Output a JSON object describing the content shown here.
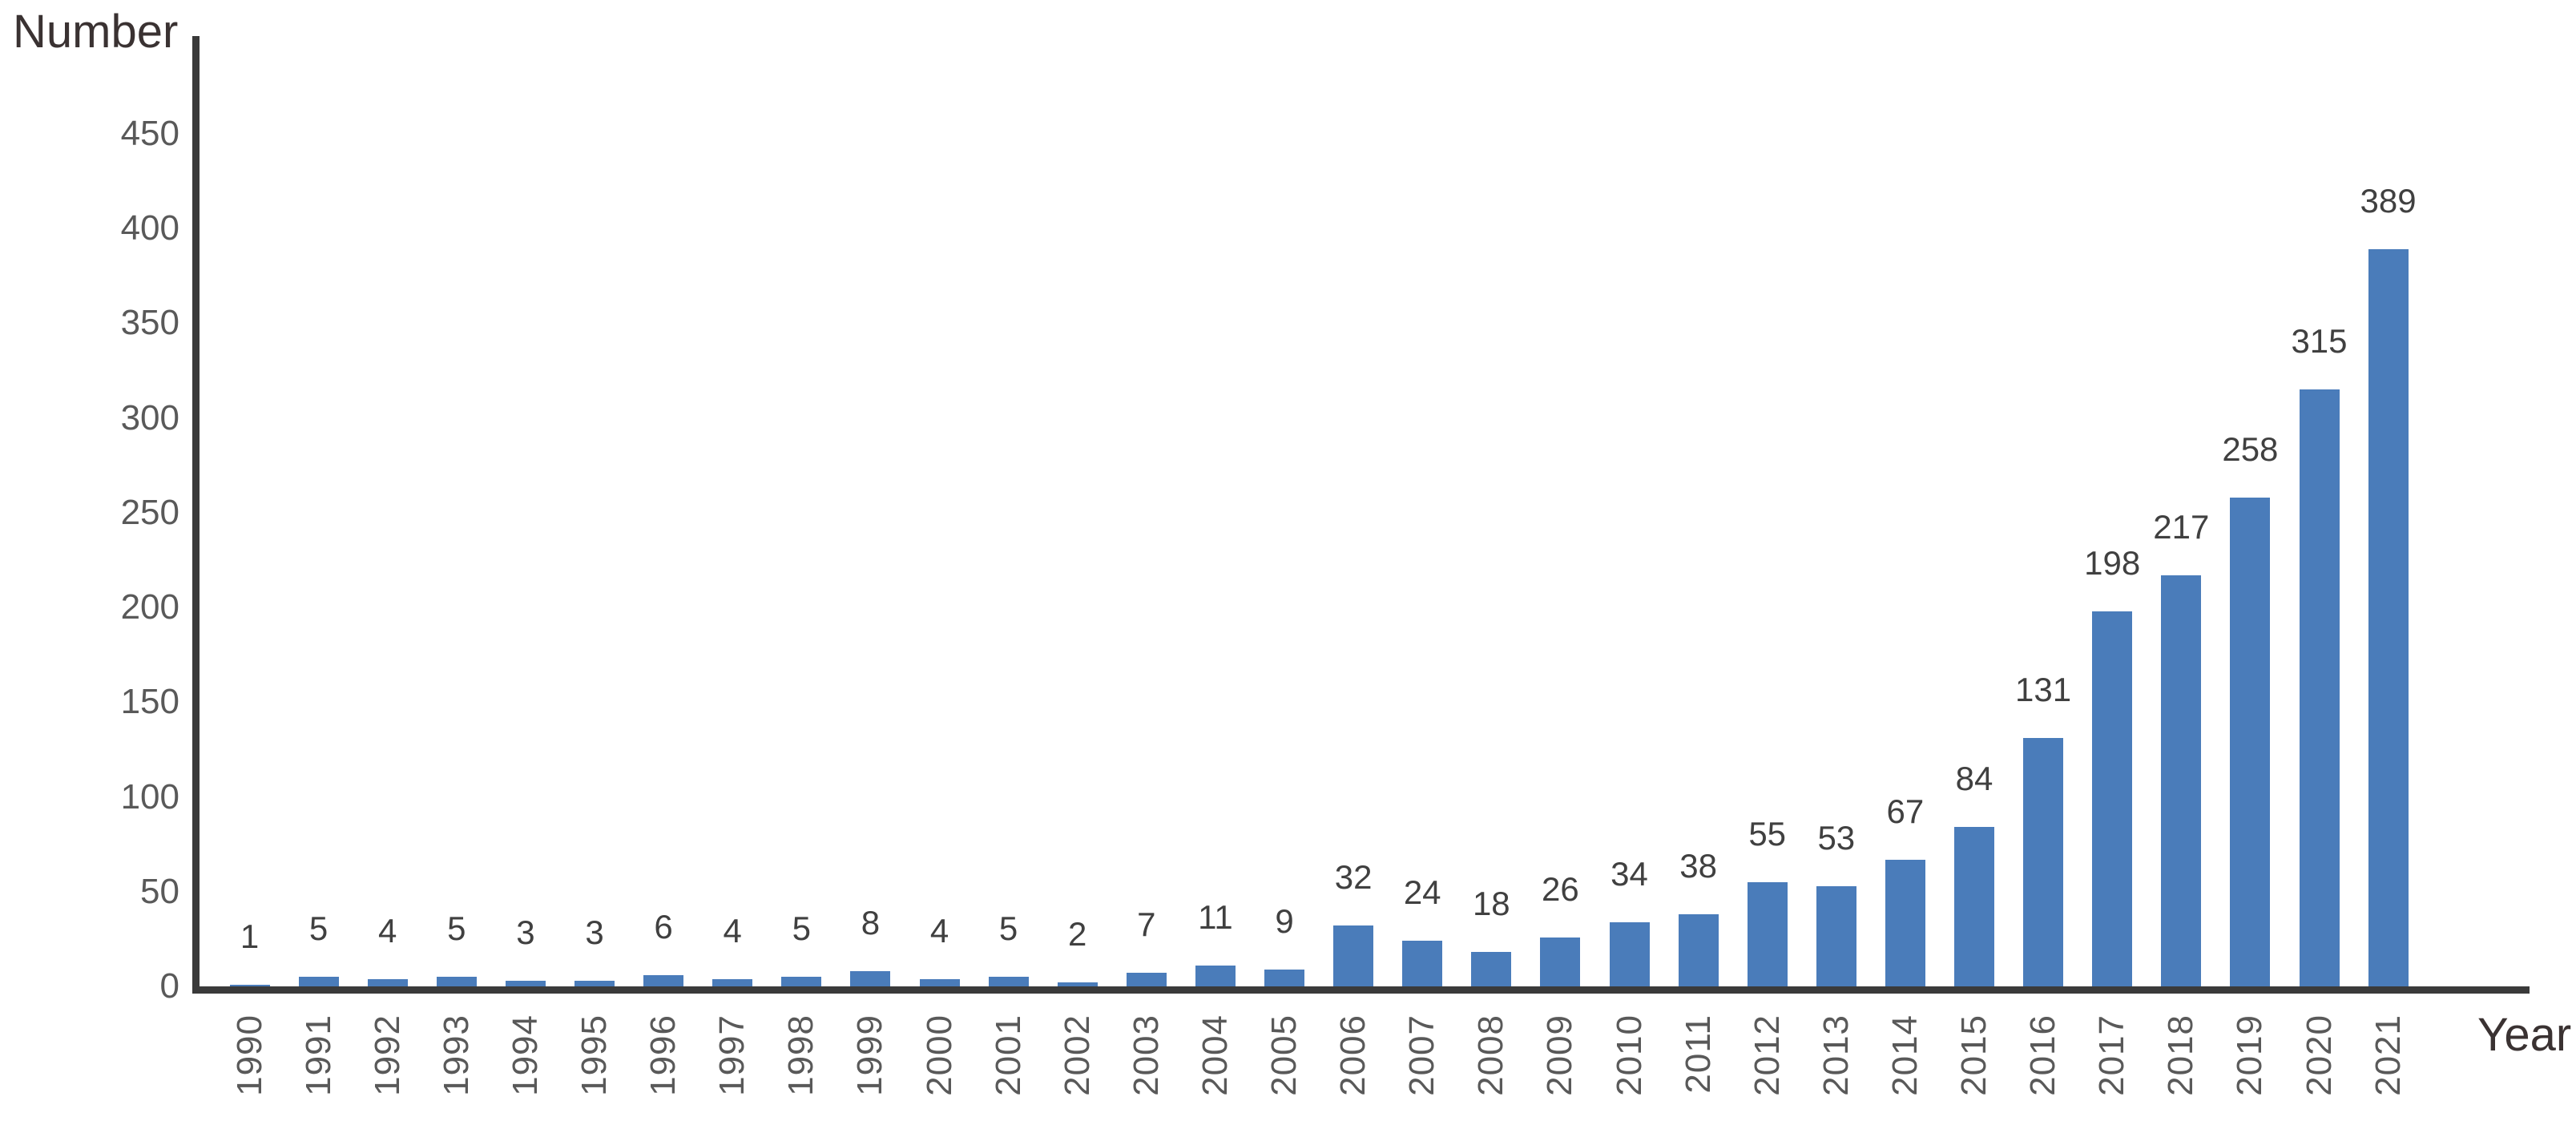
{
  "chart_data": {
    "type": "bar",
    "title": "",
    "ylabel": "Number",
    "xlabel": "Year",
    "categories": [
      "1990",
      "1991",
      "1992",
      "1993",
      "1994",
      "1995",
      "1996",
      "1997",
      "1998",
      "1999",
      "2000",
      "2001",
      "2002",
      "2003",
      "2004",
      "2005",
      "2006",
      "2007",
      "2008",
      "2009",
      "2010",
      "2011",
      "2012",
      "2013",
      "2014",
      "2015",
      "2016",
      "2017",
      "2018",
      "2019",
      "2020",
      "2021"
    ],
    "values": [
      1,
      5,
      4,
      5,
      3,
      3,
      6,
      4,
      5,
      8,
      4,
      5,
      2,
      7,
      11,
      9,
      32,
      24,
      18,
      26,
      34,
      38,
      55,
      53,
      67,
      84,
      131,
      198,
      217,
      258,
      315,
      389
    ],
    "ylim": [
      0,
      450
    ],
    "ytick_step": 50,
    "yticks": [
      0,
      50,
      100,
      150,
      200,
      250,
      300,
      350,
      400,
      450
    ],
    "grid": false,
    "legend": null,
    "data_labels_shown": true,
    "x_tick_rotation_deg": 90,
    "colors": {
      "bar": "#4a7cba",
      "axis": "#3a3a3a",
      "tick_label": "#595959",
      "data_label": "#404040",
      "axis_title": "#3a3232",
      "background": "#ffffff"
    }
  }
}
